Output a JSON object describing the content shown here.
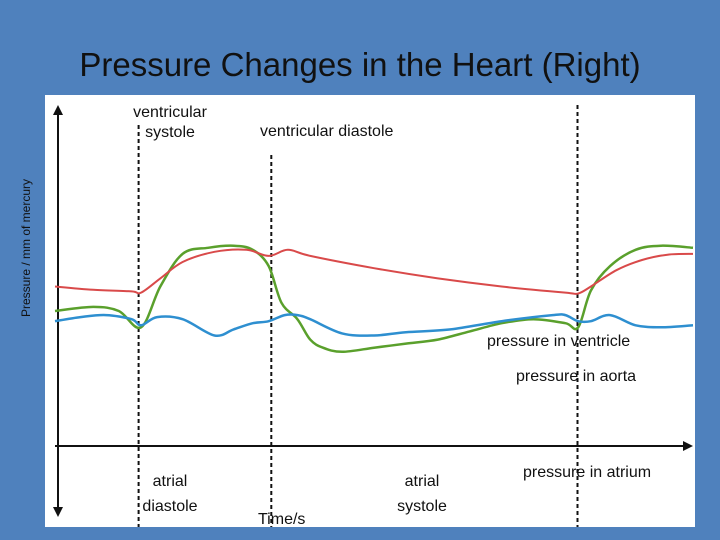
{
  "slide": {
    "title": "Pressure Changes in the Heart (Right)"
  },
  "chart_data": {
    "type": "line",
    "title": "Pressure Changes in the Heart (Right)",
    "xlabel": "Time/s",
    "ylabel": "Pressure / mm of mercury",
    "x_range": [
      0,
      100
    ],
    "y_range": [
      0,
      100
    ],
    "grid": false,
    "phase_labels": [
      "ventricular systole",
      "ventricular diastole"
    ],
    "cycle_labels": [
      "atrial diastole",
      "atrial systole"
    ],
    "phase_boundaries": [
      13.1,
      33.9,
      81.9
    ],
    "series": [
      {
        "name": "pressure in ventricle",
        "color": "#5aa02c",
        "x": [
          0,
          6,
          10,
          13.5,
          16.5,
          20,
          24,
          28,
          31,
          33.5,
          35.5,
          38,
          40,
          42,
          45,
          50,
          55,
          60,
          65,
          70,
          75,
          80,
          82,
          84,
          87,
          91,
          95,
          100
        ],
        "y": [
          50,
          51,
          50,
          46,
          56,
          64,
          65.5,
          66,
          65,
          61,
          52,
          48,
          43,
          41,
          40,
          41,
          42,
          43,
          45,
          47,
          48,
          47,
          46,
          55,
          61,
          65,
          66,
          65.5
        ]
      },
      {
        "name": "pressure in aorta",
        "color": "#d94a4a",
        "x": [
          0,
          6,
          12,
          13.5,
          16.5,
          20,
          25,
          30,
          33.5,
          36.5,
          40,
          50,
          60,
          70,
          80,
          82,
          84,
          88,
          92,
          96,
          100
        ],
        "y": [
          56,
          55.2,
          54.8,
          54.5,
          58,
          62,
          64.5,
          65,
          63.5,
          65,
          63.5,
          60.5,
          58,
          56,
          54.5,
          54.3,
          56,
          60,
          62.5,
          63.8,
          64
        ]
      },
      {
        "name": "pressure in atrium",
        "color": "#2e8fd0",
        "x": [
          0,
          4,
          8,
          12,
          13.5,
          16,
          20,
          25,
          28,
          31,
          33.5,
          36,
          38,
          40,
          45,
          50,
          55,
          62,
          70,
          78,
          80,
          82,
          84,
          87,
          91,
          95,
          100
        ],
        "y": [
          47.5,
          48.5,
          49,
          48,
          46.5,
          48.5,
          48,
          44,
          45.5,
          47,
          47.5,
          49,
          49,
          48,
          44.5,
          44,
          44.8,
          45.5,
          47.5,
          49,
          49,
          47.5,
          47.5,
          49,
          46.5,
          46,
          46.5
        ]
      }
    ]
  }
}
